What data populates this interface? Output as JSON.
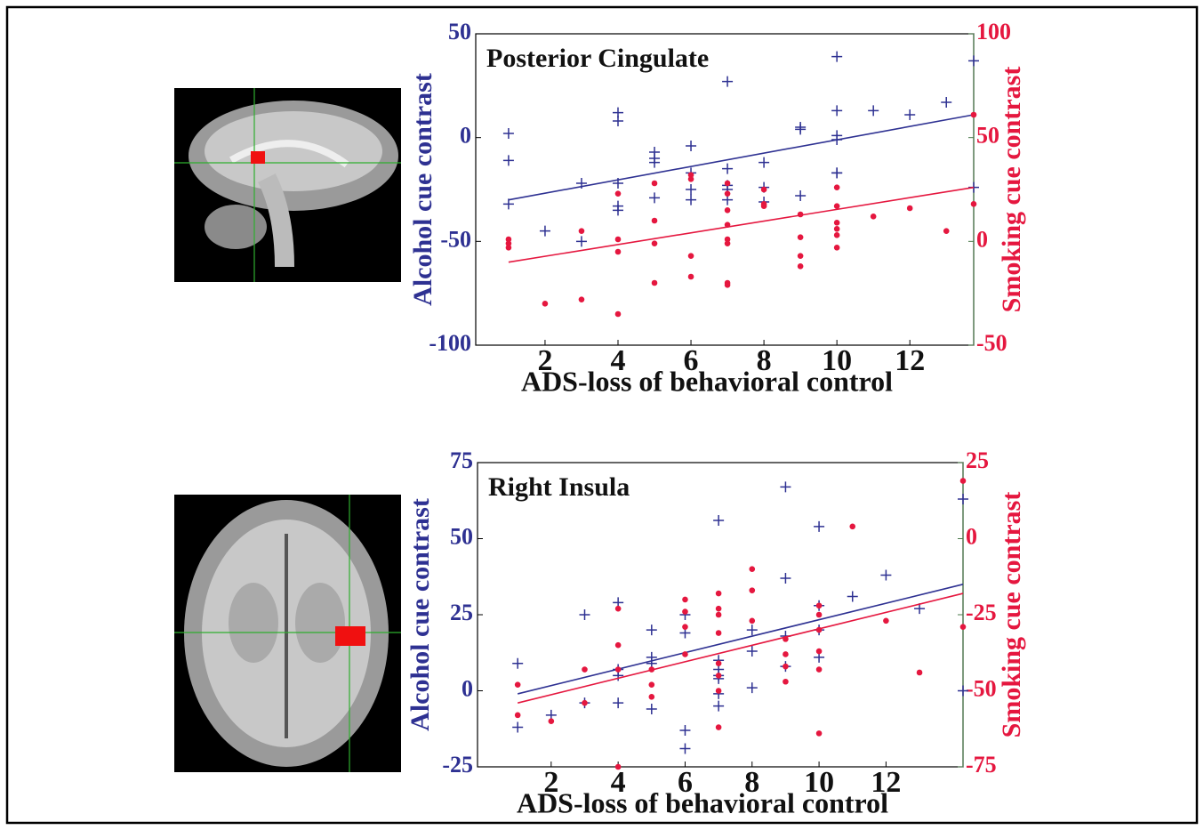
{
  "chart_data": [
    {
      "type": "scatter",
      "title": "Posterior Cingulate",
      "xlabel": "ADS-loss of behavioral control",
      "ylabel": "Alcohol cue contrast",
      "y2label": "Smoking cue contrast",
      "xlim": [
        0.1,
        13.75
      ],
      "xticks": [
        2,
        4,
        6,
        8,
        10,
        12
      ],
      "ylim": [
        -100,
        50
      ],
      "yticks": [
        -100,
        -50,
        0,
        50
      ],
      "y2lim": [
        -50,
        100
      ],
      "y2ticks": [
        -50,
        0,
        50,
        100
      ],
      "ylabel_color": "#2e3192",
      "y2label_color": "#e5173f",
      "series": [
        {
          "color": "#2e3192",
          "marker": "+",
          "axis": "y",
          "x": [
            1,
            1,
            1,
            2,
            3,
            3,
            4,
            4,
            4,
            4,
            4,
            5,
            5,
            5,
            5,
            6,
            6,
            6,
            6,
            7,
            7,
            7,
            7,
            7,
            8,
            8,
            8,
            9,
            9,
            9,
            10,
            10,
            10,
            10,
            10,
            10,
            11,
            12,
            13,
            13.75,
            13.75
          ],
          "values": [
            2,
            -11,
            -32,
            -45,
            -22,
            -50,
            12,
            8,
            -22,
            -33,
            -35,
            -7,
            -10,
            -12,
            -29,
            -4,
            -17,
            -25,
            -30,
            27,
            -15,
            -23,
            -25,
            -30,
            -12,
            -24,
            -31,
            5,
            4,
            -28,
            39,
            13,
            1,
            -1,
            -17,
            -17,
            13,
            11,
            17,
            37,
            -24
          ],
          "fit": {
            "x": [
              1,
              13.75
            ],
            "values": [
              -30,
              11
            ]
          }
        },
        {
          "color": "#e5173f",
          "marker": "o",
          "axis": "y2",
          "x": [
            1,
            1,
            1,
            2,
            3,
            3,
            4,
            4,
            4,
            4,
            5,
            5,
            5,
            5,
            6,
            6,
            6,
            6,
            7,
            7,
            7,
            7,
            7,
            7,
            7,
            7,
            8,
            8,
            8,
            9,
            9,
            9,
            9,
            10,
            10,
            10,
            10,
            10,
            10,
            11,
            12,
            13,
            13.75,
            13.75
          ],
          "values": [
            1,
            -1,
            -3,
            -30,
            5,
            -28,
            23,
            1,
            -5,
            -35,
            28,
            10,
            -1,
            -20,
            32,
            30,
            -7,
            -17,
            28,
            23,
            15,
            8,
            1,
            -1,
            -20,
            -21,
            25,
            18,
            17,
            13,
            2,
            -7,
            -12,
            26,
            17,
            9,
            6,
            3,
            -3,
            12,
            16,
            5,
            61,
            18
          ],
          "fit": {
            "x": [
              1,
              13.75
            ],
            "values": [
              -10,
              26
            ]
          }
        }
      ]
    },
    {
      "type": "scatter",
      "title": "Right Insula",
      "xlabel": "ADS-loss of behavioral control",
      "ylabel": "Alcohol cue contrast",
      "y2label": "Smoking cue contrast",
      "xlim": [
        -0.2,
        14.3
      ],
      "xticks": [
        2,
        4,
        6,
        8,
        10,
        12
      ],
      "ylim": [
        -25,
        75
      ],
      "yticks": [
        -25,
        0,
        25,
        50,
        75
      ],
      "y2lim": [
        -75,
        25
      ],
      "y2ticks": [
        -75,
        -50,
        -25,
        0,
        25
      ],
      "ylabel_color": "#2e3192",
      "y2label_color": "#e5173f",
      "series": [
        {
          "color": "#2e3192",
          "marker": "+",
          "axis": "y",
          "x": [
            1,
            1,
            2,
            3,
            3,
            4,
            4,
            4,
            4,
            5,
            5,
            5,
            5,
            6,
            6,
            6,
            6,
            7,
            7,
            7,
            7,
            7,
            7,
            7,
            8,
            8,
            8,
            9,
            9,
            9,
            9,
            10,
            10,
            10,
            10,
            11,
            12,
            13,
            14.3,
            14.3
          ],
          "values": [
            9,
            -12,
            -8,
            25,
            -4,
            29,
            7,
            5,
            -4,
            20,
            11,
            9,
            -6,
            25,
            19,
            -13,
            -19,
            56,
            10,
            7,
            5,
            4,
            -1,
            -5,
            20,
            13,
            1,
            67,
            37,
            18,
            8,
            54,
            28,
            20,
            11,
            31,
            38,
            27,
            63,
            0
          ],
          "fit": {
            "x": [
              1,
              14.3
            ],
            "values": [
              -1,
              35
            ]
          }
        },
        {
          "color": "#e5173f",
          "marker": "o",
          "axis": "y2",
          "x": [
            1,
            1,
            2,
            3,
            3,
            4,
            4,
            4,
            4,
            5,
            5,
            5,
            6,
            6,
            6,
            6,
            7,
            7,
            7,
            7,
            7,
            7,
            7,
            7,
            8,
            8,
            8,
            9,
            9,
            9,
            9,
            10,
            10,
            10,
            10,
            10,
            10,
            11,
            12,
            13,
            14.3,
            14.3
          ],
          "values": [
            -48,
            -58,
            -60,
            -43,
            -54,
            -23,
            -35,
            -43,
            -75,
            -43,
            -48,
            -52,
            -20,
            -24,
            -29,
            -38,
            -18,
            -23,
            -25,
            -31,
            -41,
            -45,
            -50,
            -62,
            -10,
            -17,
            -27,
            -33,
            -38,
            -42,
            -47,
            -22,
            -25,
            -30,
            -37,
            -43,
            -64,
            4,
            -27,
            -44,
            19,
            -29
          ],
          "fit": {
            "x": [
              1,
              14.3
            ],
            "values": [
              -54,
              -18
            ]
          }
        }
      ]
    }
  ]
}
